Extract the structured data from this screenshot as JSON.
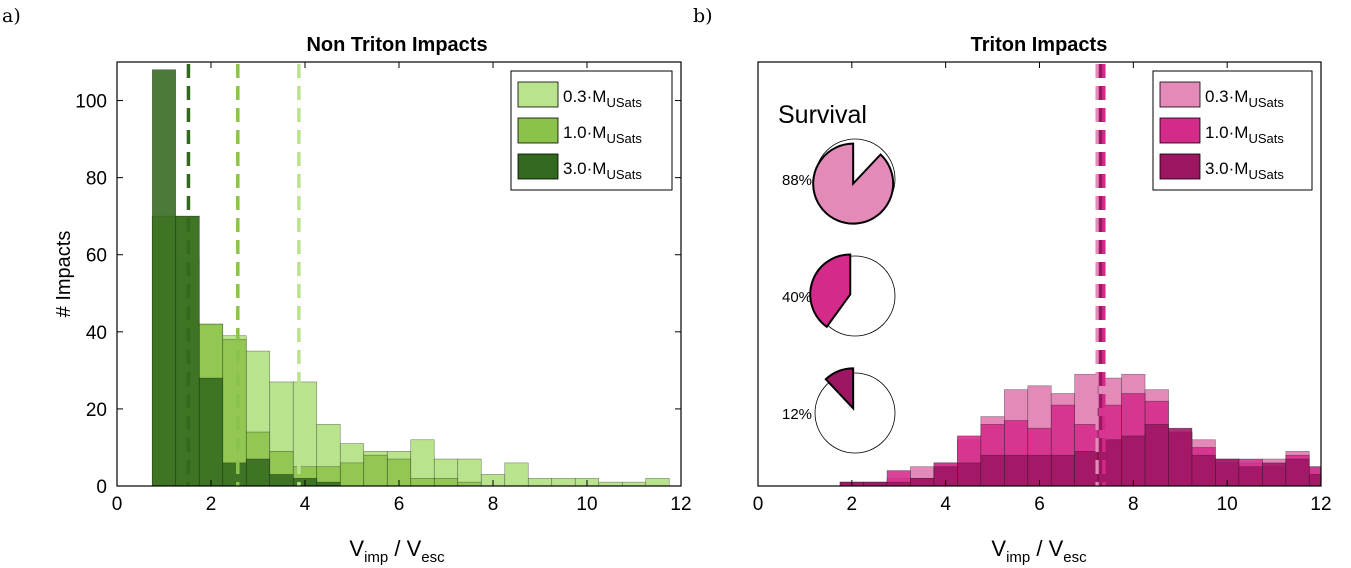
{
  "panel_labels": [
    "a)",
    "b)"
  ],
  "xlabel": {
    "main": "V",
    "sub1": "imp",
    "mid": " / V",
    "sub2": "esc"
  },
  "ylabel": "# Impacts",
  "legend_unit_sub": "USats",
  "legend_levels": [
    "0.3·M",
    "1.0·M",
    "3.0·M"
  ],
  "survival_title": "Survival",
  "colors": {
    "green": [
      "#b9e38d",
      "#8bc34a",
      "#33691e"
    ],
    "pink": [
      "#e38ab8",
      "#d42a8a",
      "#9c1662"
    ]
  },
  "chart_data": [
    {
      "type": "bar",
      "title": "Non Triton Impacts",
      "xlim": [
        0,
        12
      ],
      "ylim": [
        0,
        110
      ],
      "xticks": [
        0,
        2,
        4,
        6,
        8,
        10,
        12
      ],
      "yticks": [
        0,
        20,
        40,
        60,
        80,
        100
      ],
      "bin_edges": [
        0.75,
        1.25,
        1.75,
        2.25,
        2.75,
        3.25,
        3.75,
        4.25,
        4.75,
        5.25,
        5.75,
        6.25,
        6.75,
        7.25,
        7.75,
        8.25,
        8.75,
        9.25,
        9.75,
        10.25,
        10.75,
        11.25,
        11.75,
        12.25
      ],
      "series": [
        {
          "name": "0.3·M_USats",
          "values": [
            70,
            59,
            42,
            39,
            35,
            27,
            27,
            16,
            11,
            9,
            9,
            12,
            7,
            7,
            3,
            6,
            2,
            2,
            2,
            1,
            1,
            2,
            0
          ],
          "mean": 3.87
        },
        {
          "name": "1.0·M_USats",
          "values": [
            70,
            70,
            42,
            38,
            14,
            9,
            5,
            5,
            6,
            8,
            7,
            2,
            2,
            1,
            0,
            0,
            0,
            0,
            0,
            0,
            0,
            0,
            0
          ],
          "mean": 2.57
        },
        {
          "name": "3.0·M_USats",
          "values": [
            108,
            70,
            28,
            6,
            7,
            3,
            2,
            1,
            0,
            0,
            0,
            0,
            0,
            0,
            0,
            0,
            0,
            0,
            0,
            0,
            0,
            0,
            0
          ],
          "mean": 1.52
        }
      ],
      "legend": "top-right"
    },
    {
      "type": "bar",
      "title": "Triton Impacts",
      "xlim": [
        0,
        12
      ],
      "ylim": [
        0,
        110
      ],
      "xticks": [
        0,
        2,
        4,
        6,
        8,
        10,
        12
      ],
      "yticks": [],
      "bin_edges": [
        1.75,
        2.25,
        2.75,
        3.25,
        3.75,
        4.25,
        4.75,
        5.25,
        5.75,
        6.25,
        6.75,
        7.25,
        7.75,
        8.25,
        8.75,
        9.25,
        9.75,
        10.25,
        10.75,
        11.25,
        11.75,
        12.25
      ],
      "series": [
        {
          "name": "0.3·M_USats",
          "values": [
            1,
            1,
            2,
            5,
            6,
            12,
            18,
            25,
            26,
            24,
            29,
            28,
            29,
            25,
            14,
            12,
            7,
            6,
            7,
            9,
            5,
            2
          ],
          "mean": 7.23
        },
        {
          "name": "1.0·M_USats",
          "values": [
            1,
            1,
            4,
            2,
            6,
            13,
            16,
            17,
            15,
            21,
            16,
            21,
            24,
            22,
            14,
            10,
            6,
            7,
            5,
            8,
            5,
            2
          ],
          "mean": 7.37
        },
        {
          "name": "3.0·M_USats",
          "values": [
            1,
            1,
            1,
            2,
            5,
            6,
            8,
            8,
            8,
            8,
            9,
            12,
            13,
            16,
            15,
            8,
            7,
            5,
            6,
            7,
            3,
            1
          ],
          "mean": 7.3
        }
      ],
      "legend": "top-right",
      "survival": [
        {
          "label": "88%",
          "fraction": 0.88
        },
        {
          "label": "40%",
          "fraction": 0.4
        },
        {
          "label": "12%",
          "fraction": 0.12
        }
      ]
    }
  ]
}
